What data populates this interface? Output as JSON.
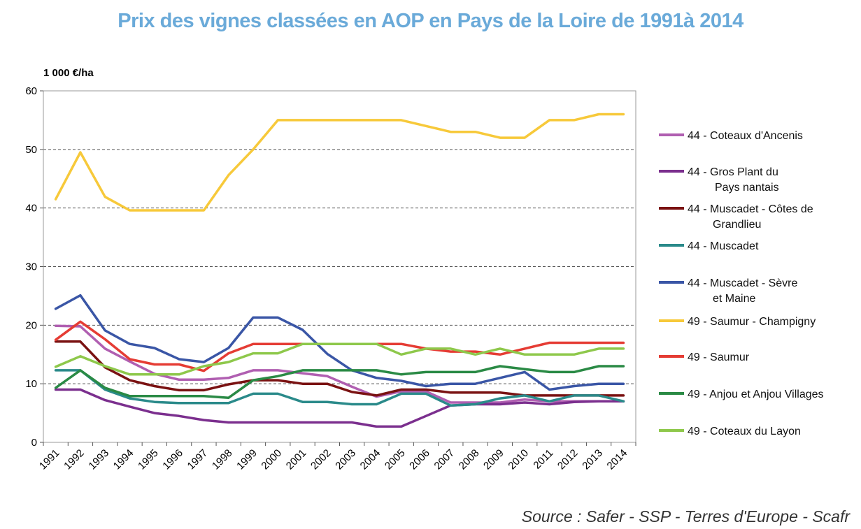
{
  "chart_data": {
    "type": "line",
    "title": "Prix des vignes classées en AOP en Pays de la Loire de 1991à 2014",
    "ylabel": "1 000 €/ha",
    "xlabel": "",
    "source": "Source : Safer - SSP - Terres d'Europe - Scafr",
    "ylim": [
      0,
      60
    ],
    "yticks": [
      "0",
      "10",
      "20",
      "30",
      "40",
      "50",
      "60"
    ],
    "categories": [
      "1991",
      "1992",
      "1993",
      "1994",
      "1995",
      "1996",
      "1997",
      "1998",
      "1999",
      "2000",
      "2001",
      "2002",
      "2003",
      "2004",
      "2005",
      "2006",
      "2007",
      "2008",
      "2009",
      "2010",
      "2011",
      "2012",
      "2013",
      "2014"
    ],
    "grid": "horizontal dashed",
    "legend_position": "right",
    "series": [
      {
        "legend_lines": [
          "44 - Coteaux d'Ancenis"
        ],
        "color": "#b05fb1",
        "values": [
          19.9,
          19.8,
          16,
          13.8,
          11.7,
          10.7,
          10.7,
          11,
          12.3,
          12.3,
          11.8,
          11.3,
          9.5,
          7.8,
          8.7,
          8.7,
          6.8,
          6.8,
          6.8,
          7.3,
          7,
          7,
          7,
          7
        ]
      },
      {
        "legend_lines": [
          "44 - Gros Plant du",
          "Pays nantais"
        ],
        "color": "#7b2f8e",
        "values": [
          9,
          9,
          7.2,
          6.1,
          5,
          4.5,
          3.8,
          3.4,
          3.4,
          3.4,
          3.4,
          3.4,
          3.4,
          2.7,
          2.7,
          4.5,
          6.3,
          6.5,
          6.5,
          6.8,
          6.5,
          6.9,
          7,
          7
        ]
      },
      {
        "legend_lines": [
          "44 - Muscadet - Côtes de",
          "Grandlieu"
        ],
        "color": "#7a1212",
        "values": [
          17.2,
          17.2,
          12.8,
          10.6,
          9.6,
          8.9,
          8.9,
          9.9,
          10.6,
          10.6,
          10,
          10,
          8.6,
          8,
          9,
          9,
          8.5,
          8.5,
          8.5,
          8,
          8,
          8,
          8,
          8
        ]
      },
      {
        "legend_lines": [
          "44 - Muscadet"
        ],
        "color": "#2a8a8a",
        "values": [
          12.3,
          12.3,
          9,
          7.5,
          6.9,
          6.7,
          6.7,
          6.7,
          8.3,
          8.3,
          6.9,
          6.9,
          6.5,
          6.5,
          8.3,
          8.3,
          6.3,
          6.5,
          7.5,
          8,
          7,
          8,
          8,
          7
        ]
      },
      {
        "legend_lines": [
          "44 - Muscadet - Sèvre",
          "et Maine"
        ],
        "color": "#3a56a6",
        "values": [
          22.8,
          25.1,
          19.1,
          16.8,
          16.1,
          14.2,
          13.7,
          16.1,
          21.3,
          21.3,
          19.2,
          15.1,
          12.3,
          11,
          10.5,
          9.6,
          10,
          10,
          11,
          12,
          9,
          9.6,
          10,
          10
        ]
      },
      {
        "legend_lines": [
          "49 - Saumur - Champigny"
        ],
        "color": "#f7c93a",
        "values": [
          41.5,
          49.5,
          41.9,
          39.6,
          39.6,
          39.6,
          39.6,
          45.6,
          50,
          55,
          55,
          55,
          55,
          55,
          55,
          54,
          53,
          53,
          52,
          52,
          55,
          55,
          56,
          56
        ]
      },
      {
        "legend_lines": [
          "49 - Saumur"
        ],
        "color": "#e53c34",
        "values": [
          17.5,
          20.6,
          17.6,
          14.2,
          13.3,
          13.3,
          12.2,
          15.2,
          16.8,
          16.8,
          16.8,
          16.8,
          16.8,
          16.8,
          16.8,
          16,
          15.5,
          15.5,
          15,
          16,
          17,
          17,
          17,
          17
        ]
      },
      {
        "legend_lines": [
          "49 - Anjou et Anjou Villages"
        ],
        "color": "#2a8a45",
        "values": [
          9.3,
          12.3,
          9.3,
          7.9,
          7.9,
          7.9,
          7.9,
          7.6,
          10.6,
          11.3,
          12.3,
          12.3,
          12.3,
          12.3,
          11.6,
          12,
          12,
          12,
          13,
          12.5,
          12,
          12,
          13,
          13
        ]
      },
      {
        "legend_lines": [
          "49 - Coteaux du Layon"
        ],
        "color": "#8ec84b",
        "values": [
          12.9,
          14.7,
          13,
          11.6,
          11.6,
          11.6,
          13,
          13.7,
          15.2,
          15.2,
          16.8,
          16.8,
          16.8,
          16.8,
          15,
          16,
          16,
          15,
          16,
          15,
          15,
          15,
          16,
          16
        ]
      }
    ]
  }
}
